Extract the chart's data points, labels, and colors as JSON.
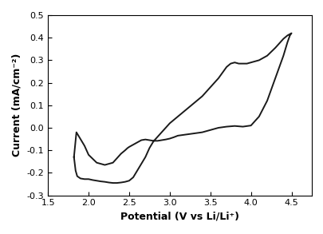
{
  "title": "",
  "xlabel": "Potential (V vs Li/Li⁺)",
  "ylabel": "Current (mA/cm⁻²)",
  "xlim": [
    1.5,
    4.75
  ],
  "ylim": [
    -0.3,
    0.5
  ],
  "xticks": [
    1.5,
    2.0,
    2.5,
    3.0,
    3.5,
    4.0,
    4.5
  ],
  "yticks": [
    -0.3,
    -0.2,
    -0.1,
    0.0,
    0.1,
    0.2,
    0.3,
    0.4,
    0.5
  ],
  "line_color": "#1a1a1a",
  "line_width": 1.4,
  "background_color": "#ffffff",
  "cv_x": [
    1.82,
    1.84,
    1.86,
    1.9,
    1.95,
    2.0,
    2.05,
    2.1,
    2.15,
    2.2,
    2.25,
    2.3,
    2.35,
    2.4,
    2.45,
    2.5,
    2.55,
    2.6,
    2.65,
    2.7,
    2.75,
    2.8,
    2.9,
    3.0,
    3.1,
    3.2,
    3.3,
    3.4,
    3.5,
    3.6,
    3.7,
    3.75,
    3.8,
    3.85,
    3.9,
    3.95,
    4.0,
    4.1,
    4.2,
    4.3,
    4.4,
    4.45,
    4.5,
    4.5,
    4.48,
    4.45,
    4.4,
    4.3,
    4.2,
    4.1,
    4.0,
    3.9,
    3.8,
    3.7,
    3.6,
    3.5,
    3.4,
    3.3,
    3.2,
    3.1,
    3.05,
    3.0,
    2.95,
    2.9,
    2.85,
    2.8,
    2.75,
    2.7,
    2.65,
    2.6,
    2.55,
    2.5,
    2.48,
    2.45,
    2.4,
    2.35,
    2.3,
    2.2,
    2.1,
    2.0,
    1.95,
    1.9,
    1.85,
    1.82
  ],
  "cv_y": [
    -0.13,
    -0.19,
    -0.215,
    -0.225,
    -0.228,
    -0.228,
    -0.232,
    -0.235,
    -0.238,
    -0.24,
    -0.243,
    -0.245,
    -0.245,
    -0.243,
    -0.24,
    -0.235,
    -0.22,
    -0.19,
    -0.16,
    -0.13,
    -0.09,
    -0.06,
    -0.02,
    0.02,
    0.05,
    0.08,
    0.11,
    0.14,
    0.18,
    0.22,
    0.27,
    0.285,
    0.29,
    0.285,
    0.285,
    0.285,
    0.29,
    0.3,
    0.32,
    0.355,
    0.395,
    0.41,
    0.42,
    0.42,
    0.41,
    0.38,
    0.32,
    0.22,
    0.12,
    0.05,
    0.01,
    0.005,
    0.008,
    0.005,
    0.0,
    -0.01,
    -0.02,
    -0.025,
    -0.03,
    -0.035,
    -0.042,
    -0.048,
    -0.052,
    -0.055,
    -0.058,
    -0.058,
    -0.055,
    -0.052,
    -0.055,
    -0.065,
    -0.075,
    -0.085,
    -0.09,
    -0.1,
    -0.115,
    -0.135,
    -0.155,
    -0.165,
    -0.155,
    -0.12,
    -0.08,
    -0.05,
    -0.02,
    -0.13
  ]
}
